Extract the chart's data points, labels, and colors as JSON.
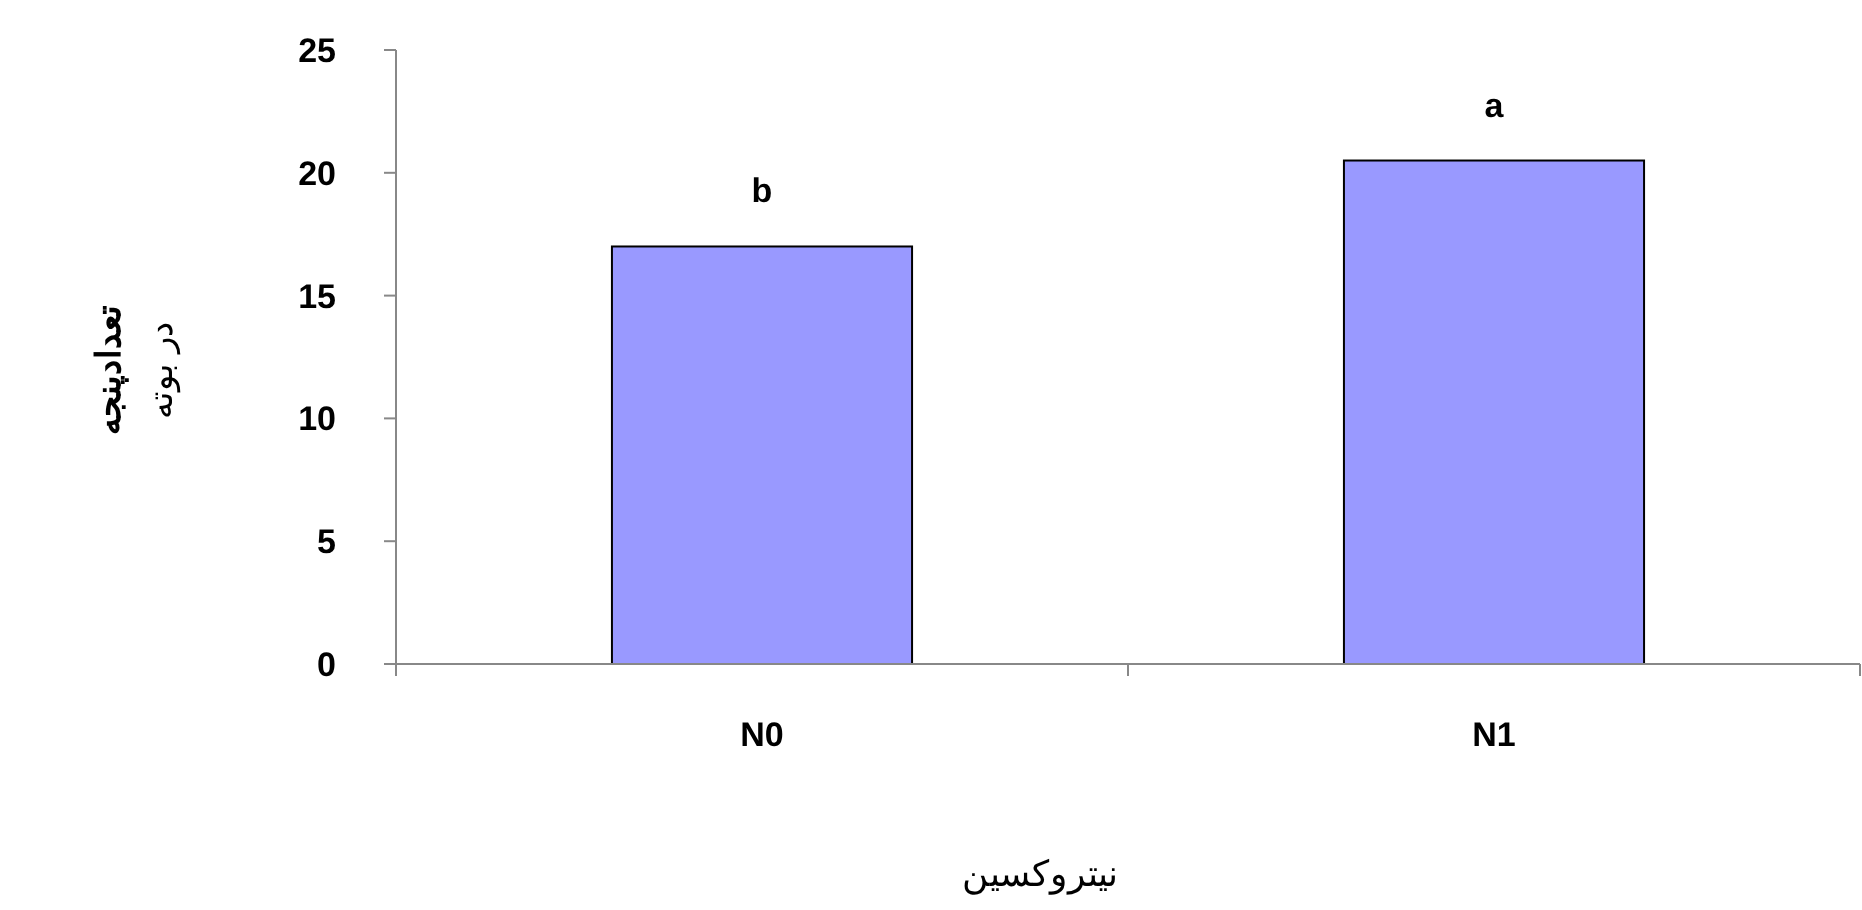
{
  "chart_data": {
    "type": "bar",
    "categories": [
      "N0",
      "N1"
    ],
    "values": [
      17,
      20.5
    ],
    "color": "#9999ff",
    "xlabel": "نیتروکسین",
    "ylabel": "تعدادپنجه\nدر بوته",
    "ylim": [
      0,
      25
    ],
    "yticks": [
      0,
      5,
      10,
      15,
      20,
      25
    ],
    "grid": false,
    "annotations": [
      "b",
      "a"
    ]
  }
}
